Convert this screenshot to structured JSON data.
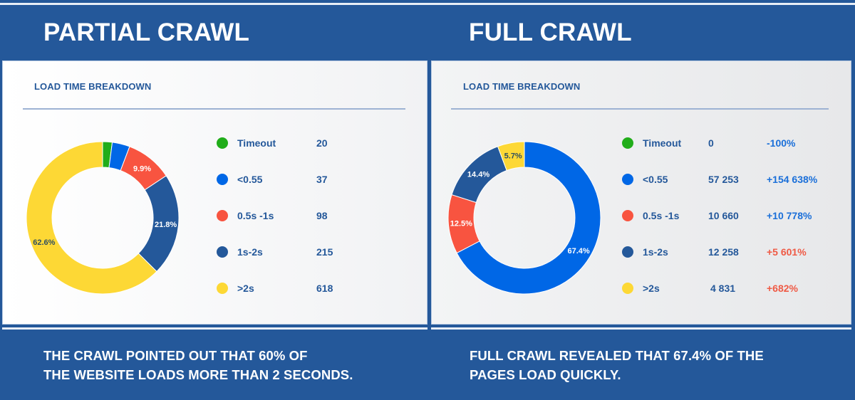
{
  "colors": {
    "background": "#24589a",
    "timeout": "#21ad1a",
    "fast": "#0067e6",
    "medium": "#f85440",
    "slow": "#24589a",
    "very_slow": "#fdd835",
    "change_positive_good": "#1a6fd9",
    "change_positive_bad": "#ef5a45"
  },
  "panels": [
    {
      "id": "partial",
      "title": "PARTIAL CRAWL",
      "card_title": "LOAD TIME BREAKDOWN",
      "caption_line1": "THE CRAWL POINTED OUT THAT 60% OF",
      "caption_line2": "THE WEBSITE LOADS MORE THAN 2 SECONDS.",
      "legend": [
        {
          "label": "Timeout",
          "value": "20",
          "color": "#21ad1a"
        },
        {
          "label": "<0.55",
          "value": "37",
          "color": "#0067e6"
        },
        {
          "label": "0.5s -1s",
          "value": "98",
          "color": "#f85440"
        },
        {
          "label": "1s-2s",
          "value": "215",
          "color": "#24589a"
        },
        {
          "label": ">2s",
          "value": "618",
          "color": "#fdd835"
        }
      ]
    },
    {
      "id": "full",
      "title": "FULL CRAWL",
      "card_title": "LOAD TIME BREAKDOWN",
      "caption_line1": "FULL CRAWL REVEALED THAT 67.4% OF THE",
      "caption_line2": "PAGES LOAD QUICKLY.",
      "legend": [
        {
          "label": "Timeout",
          "value": "0",
          "change": "-100%",
          "change_color": "#1a6fd9",
          "color": "#21ad1a"
        },
        {
          "label": "<0.55",
          "value": "57 253",
          "change": "+154 638%",
          "change_color": "#1a6fd9",
          "color": "#0067e6"
        },
        {
          "label": "0.5s -1s",
          "value": "10 660",
          "change": "+10 778%",
          "change_color": "#1a6fd9",
          "color": "#f85440"
        },
        {
          "label": "1s-2s",
          "value": "12 258",
          "change": "+5 601%",
          "change_color": "#ef5a45",
          "color": "#24589a"
        },
        {
          "label": ">2s",
          "value": "4 831",
          "change": "+682%",
          "change_color": "#ef5a45",
          "color": "#fdd835"
        }
      ]
    }
  ],
  "chart_data": [
    {
      "type": "pie",
      "variant": "donut",
      "title": "PARTIAL CRAWL — LOAD TIME BREAKDOWN",
      "categories": [
        "Timeout",
        "<0.55",
        "0.5s -1s",
        "1s-2s",
        ">2s"
      ],
      "values": [
        20,
        37,
        98,
        215,
        618
      ],
      "percent_labels": [
        "",
        "",
        "9.9%",
        "21.8%",
        "62.6%"
      ],
      "colors": [
        "#21ad1a",
        "#0067e6",
        "#f85440",
        "#24589a",
        "#fdd835"
      ],
      "label_colors": [
        "#ffffff",
        "#ffffff",
        "#ffffff",
        "#ffffff",
        "#2f4f5f"
      ],
      "legend_position": "right"
    },
    {
      "type": "pie",
      "variant": "donut",
      "title": "FULL CRAWL — LOAD TIME BREAKDOWN",
      "categories": [
        "Timeout",
        "<0.55",
        "0.5s -1s",
        "1s-2s",
        ">2s"
      ],
      "values": [
        0,
        57253,
        10660,
        12258,
        4831
      ],
      "percent_labels": [
        "",
        "67.4%",
        "12.5%",
        "14.4%",
        "5.7%"
      ],
      "changes": [
        "-100%",
        "+154 638%",
        "+10 778%",
        "+5 601%",
        "+682%"
      ],
      "colors": [
        "#21ad1a",
        "#0067e6",
        "#f85440",
        "#24589a",
        "#fdd835"
      ],
      "label_colors": [
        "#ffffff",
        "#ffffff",
        "#ffffff",
        "#ffffff",
        "#2f4f5f"
      ],
      "legend_position": "right"
    }
  ]
}
